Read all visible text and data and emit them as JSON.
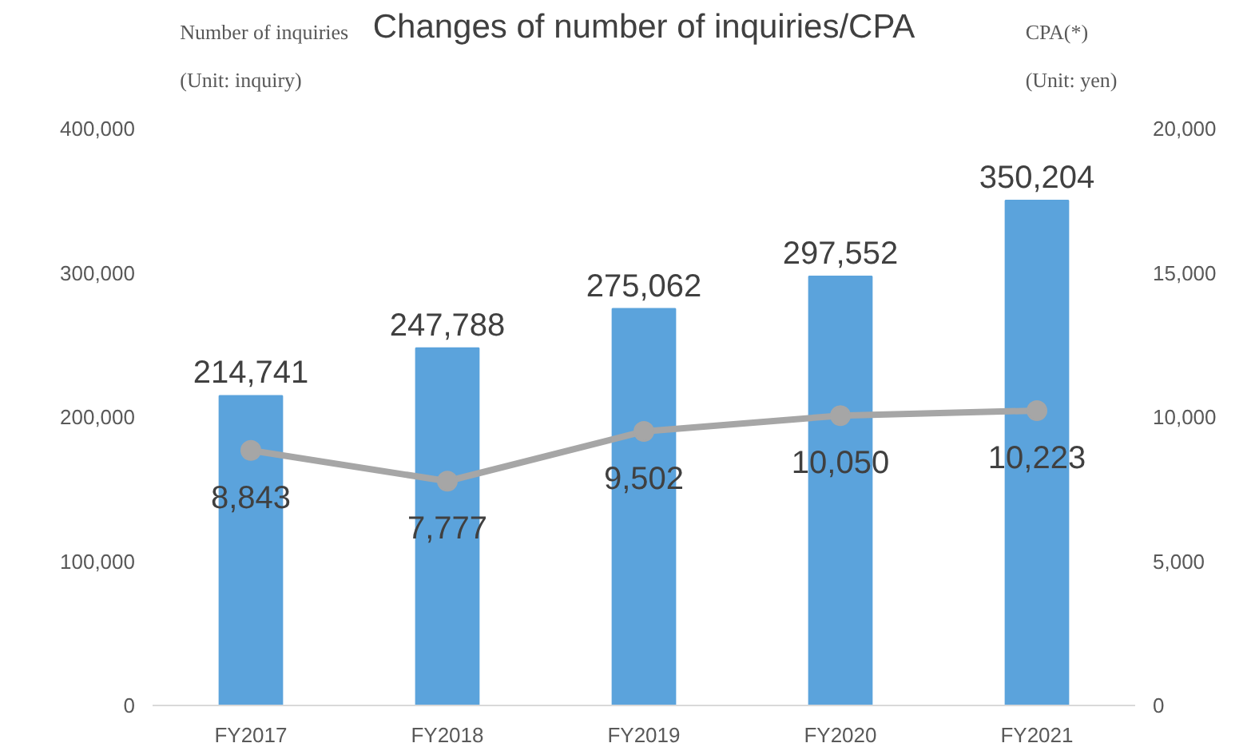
{
  "chart_data": {
    "type": "bar",
    "title": "Changes of number of inquiries/CPA",
    "ylabel": "Number of inquiries",
    "y2label": "CPA(*)",
    "annotations": [
      "(Unit: inquiry)",
      "(Unit: yen)"
    ],
    "categories": [
      "FY2017",
      "FY2018",
      "FY2019",
      "FY2020",
      "FY2021"
    ],
    "series": [
      {
        "color": "#5ba3dc",
        "values": [
          214741,
          247788,
          275062,
          297552,
          350204
        ],
        "value_labels": [
          "214,741",
          "247,788",
          "275,062",
          "297,552",
          "350,204"
        ]
      },
      {
        "type": "line",
        "axis": "y2",
        "color": "#a6a6a6",
        "marker": "circle",
        "line_style": "solid",
        "values": [
          8843,
          7777,
          9502,
          10050,
          10223
        ],
        "value_labels": [
          "8,843",
          "7,777",
          "9,502",
          "10,050",
          "10,223"
        ]
      }
    ],
    "ylim": [
      0,
      400000
    ],
    "yticks": [
      0,
      {
        "value": 100000,
        "label": "100,000"
      },
      {
        "value": 200000,
        "label": "200,000"
      },
      {
        "value": 300000,
        "label": "300,000"
      },
      {
        "value": 400000,
        "label": "400,000"
      }
    ],
    "y2lim": [
      0,
      20000
    ],
    "y2ticks": [
      0,
      {
        "value": 5000,
        "label": "5,000"
      },
      {
        "value": 10000,
        "label": "10,000"
      },
      {
        "value": 15000,
        "label": "15,000"
      },
      {
        "value": 20000,
        "label": "20,000"
      }
    ],
    "grid": false
  }
}
